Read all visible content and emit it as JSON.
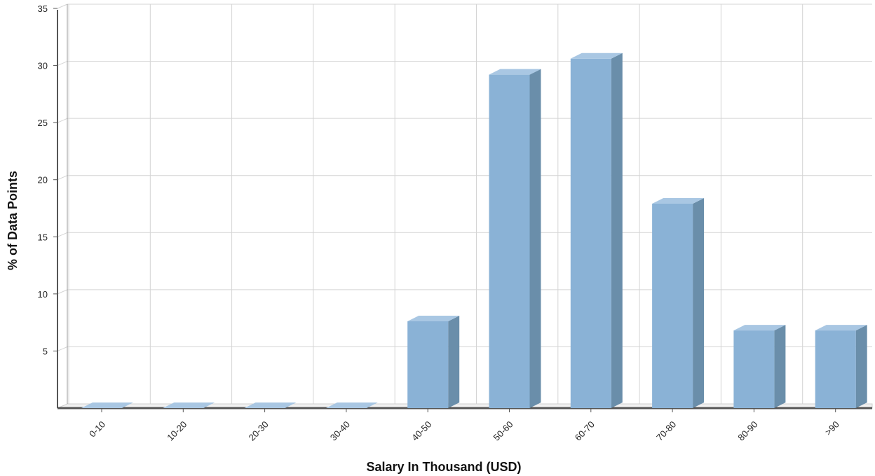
{
  "chart_data": {
    "type": "bar",
    "title": "",
    "xlabel": "Salary In Thousand (USD)",
    "ylabel": "% of Data Points",
    "categories": [
      "0-10",
      "10-20",
      "20-30",
      "30-40",
      "40-50",
      "50-60",
      "60-70",
      "70-80",
      "80-90",
      ">90"
    ],
    "values": [
      0,
      0,
      0,
      0,
      7.6,
      29.2,
      30.6,
      17.9,
      6.8,
      6.8
    ],
    "ylim": [
      0,
      35
    ],
    "yticks": [
      5,
      10,
      15,
      20,
      25,
      30,
      35
    ],
    "ytick_labels": [
      "5",
      "10",
      "15",
      "20",
      "25",
      "30",
      "35"
    ],
    "grid": true,
    "bar_style": "3d",
    "colors": {
      "bar_front": "#8ab2d6",
      "bar_top": "#a9c7e3",
      "bar_side": "#6a8eaa",
      "grid": "#d4d4d4",
      "axis": "#555555"
    }
  }
}
